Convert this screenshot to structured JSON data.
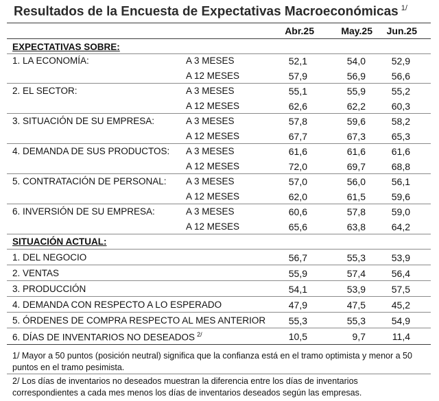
{
  "title": "Resultados de la Encuesta de Expectativas Macroeconómicas",
  "title_note": "1/",
  "columns": [
    "Abr.25",
    "May.25",
    "Jun.25"
  ],
  "expectativas": {
    "heading": "EXPECTATIVAS SOBRE:",
    "groups": [
      {
        "label": "1. LA ECONOMÍA:",
        "rows": [
          {
            "horizon": "A 3 MESES",
            "values": [
              "52,1",
              "54,0",
              "52,9"
            ]
          },
          {
            "horizon": "A 12 MESES",
            "values": [
              "57,9",
              "56,9",
              "56,6"
            ]
          }
        ]
      },
      {
        "label": "2. EL SECTOR:",
        "rows": [
          {
            "horizon": "A 3 MESES",
            "values": [
              "55,1",
              "55,9",
              "55,2"
            ]
          },
          {
            "horizon": "A 12 MESES",
            "values": [
              "62,6",
              "62,2",
              "60,3"
            ]
          }
        ]
      },
      {
        "label": "3. SITUACIÓN DE SU EMPRESA:",
        "rows": [
          {
            "horizon": "A 3 MESES",
            "values": [
              "57,8",
              "59,6",
              "58,2"
            ]
          },
          {
            "horizon": "A 12 MESES",
            "values": [
              "67,7",
              "67,3",
              "65,3"
            ]
          }
        ]
      },
      {
        "label": "4. DEMANDA DE SUS PRODUCTOS:",
        "rows": [
          {
            "horizon": "A 3 MESES",
            "values": [
              "61,6",
              "61,6",
              "61,6"
            ]
          },
          {
            "horizon": "A 12 MESES",
            "values": [
              "72,0",
              "69,7",
              "68,8"
            ]
          }
        ]
      },
      {
        "label": "5. CONTRATACIÓN DE PERSONAL:",
        "rows": [
          {
            "horizon": "A 3 MESES",
            "values": [
              "57,0",
              "56,0",
              "56,1"
            ]
          },
          {
            "horizon": "A 12 MESES",
            "values": [
              "62,0",
              "61,5",
              "59,6"
            ]
          }
        ]
      },
      {
        "label": "6. INVERSIÓN DE SU EMPRESA:",
        "rows": [
          {
            "horizon": "A 3 MESES",
            "values": [
              "60,6",
              "57,8",
              "59,0"
            ]
          },
          {
            "horizon": "A 12 MESES",
            "values": [
              "65,6",
              "63,8",
              "64,2"
            ]
          }
        ]
      }
    ]
  },
  "situacion": {
    "heading": "SITUACIÓN ACTUAL:",
    "rows": [
      {
        "label": "1. DEL NEGOCIO",
        "values": [
          "56,7",
          "55,3",
          "53,9"
        ]
      },
      {
        "label": "2. VENTAS",
        "values": [
          "55,9",
          "57,4",
          "56,4"
        ]
      },
      {
        "label": "3. PRODUCCIÓN",
        "values": [
          "54,1",
          "53,9",
          "57,5"
        ]
      },
      {
        "label": "4. DEMANDA CON RESPECTO A LO ESPERADO",
        "values": [
          "47,9",
          "47,5",
          "45,2"
        ]
      },
      {
        "label": "5. ÓRDENES DE COMPRA RESPECTO AL MES ANTERIOR",
        "values": [
          "55,3",
          "55,3",
          "54,9"
        ]
      },
      {
        "label": "6. DÍAS DE INVENTARIOS NO DESEADOS",
        "note": "2/",
        "values": [
          "10,5",
          "9,7",
          "11,4"
        ]
      }
    ]
  },
  "notes": [
    "1/ Mayor a 50 puntos (posición neutral) significa que la confianza está en el tramo optimista y menor a 50 puntos en el tramo pesimista.",
    "2/ Los días de inventarios no deseados muestran la diferencia entre los días de inventarios correspondientes a cada mes menos los días de inventarios deseados según las empresas."
  ]
}
